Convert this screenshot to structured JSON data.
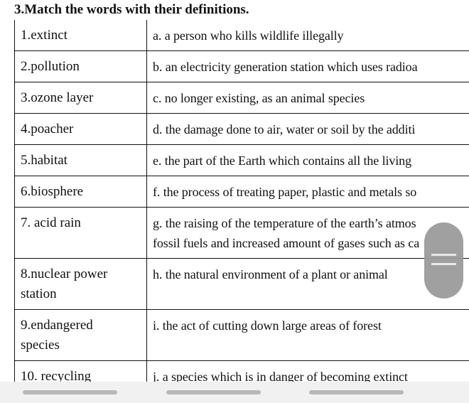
{
  "title": "3.Match the words with their definitions.",
  "rows": [
    {
      "word": "1.extinct",
      "definition": [
        "a. a person who kills wildlife illegally"
      ]
    },
    {
      "word": "2.pollution",
      "definition": [
        "b. an electricity generation station which uses radioa"
      ]
    },
    {
      "word": "3.ozone layer",
      "definition": [
        "c. no longer existing, as an animal species"
      ]
    },
    {
      "word": "4.poacher",
      "definition": [
        "d. the damage done to air, water or soil by the additi"
      ]
    },
    {
      "word": "5.habitat",
      "definition": [
        "e. the part of the Earth which contains all the living"
      ]
    },
    {
      "word": "6.biosphere",
      "definition": [
        "f. the process of treating paper, plastic and metals so"
      ]
    },
    {
      "word": "7. acid rain",
      "definition": [
        "g. the raising of the temperature of the earth’s atmos",
        "fossil fuels and increased amount of gases such as ca"
      ]
    },
    {
      "word": [
        "8.nuclear power",
        "station"
      ],
      "definition": [
        "h. the natural environment of a plant or animal"
      ]
    },
    {
      "word": [
        "9.endangered",
        "species"
      ],
      "definition": [
        "i. the act of cutting down large areas of forest"
      ]
    },
    {
      "word": "10. recycling",
      "definition": [
        "j. a species which is in danger of becoming extinct"
      ]
    }
  ],
  "scroll_handle_icon": "drag-handle-icon"
}
